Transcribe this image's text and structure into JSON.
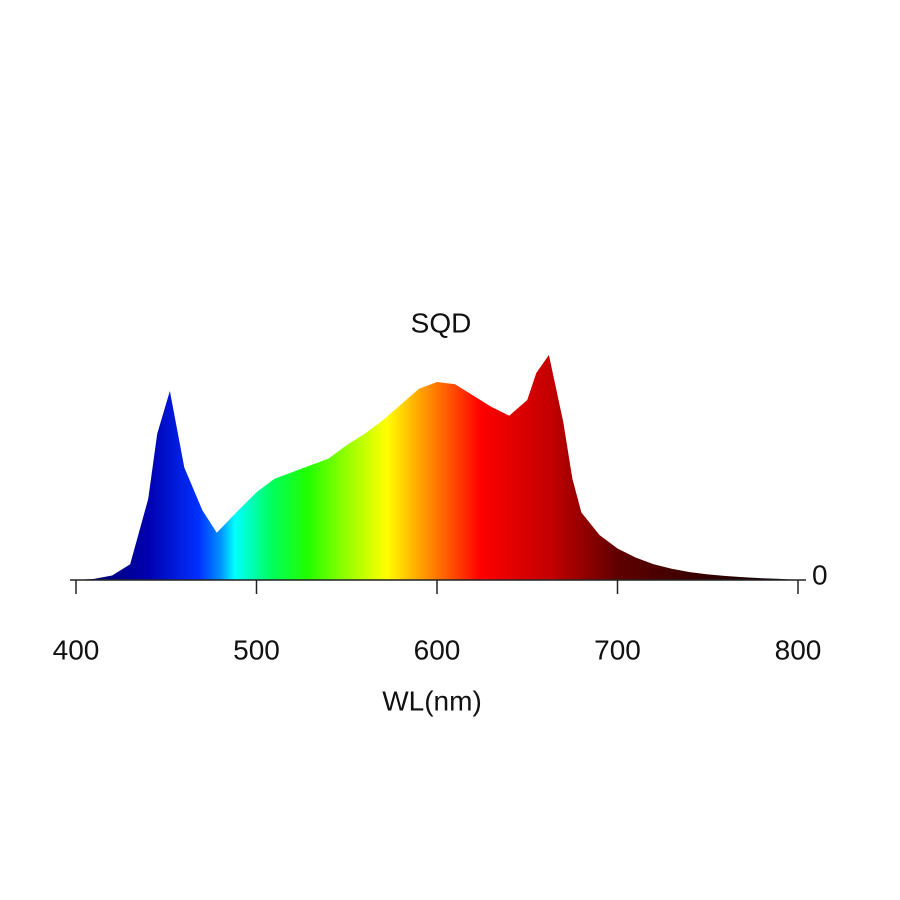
{
  "chart_data": {
    "type": "area",
    "title": "SQD",
    "xlabel": "WL(nm)",
    "x": [
      400,
      410,
      420,
      430,
      440,
      445,
      452,
      460,
      470,
      478,
      490,
      500,
      510,
      520,
      530,
      540,
      550,
      560,
      570,
      580,
      590,
      600,
      610,
      620,
      630,
      640,
      650,
      655,
      662,
      670,
      675,
      680,
      690,
      700,
      710,
      720,
      730,
      740,
      750,
      760,
      770,
      780,
      790,
      800
    ],
    "values": [
      0,
      0.005,
      0.02,
      0.07,
      0.36,
      0.65,
      0.84,
      0.5,
      0.31,
      0.21,
      0.31,
      0.39,
      0.45,
      0.48,
      0.51,
      0.54,
      0.6,
      0.65,
      0.71,
      0.78,
      0.85,
      0.88,
      0.87,
      0.82,
      0.77,
      0.73,
      0.8,
      0.92,
      1.0,
      0.7,
      0.45,
      0.3,
      0.2,
      0.14,
      0.1,
      0.07,
      0.05,
      0.035,
      0.025,
      0.018,
      0.012,
      0.008,
      0.005,
      0
    ],
    "xlim": [
      400,
      800
    ],
    "xticks": [
      400,
      500,
      600,
      700,
      800
    ],
    "ylim": [
      0,
      1
    ],
    "yticks": [
      0
    ]
  }
}
